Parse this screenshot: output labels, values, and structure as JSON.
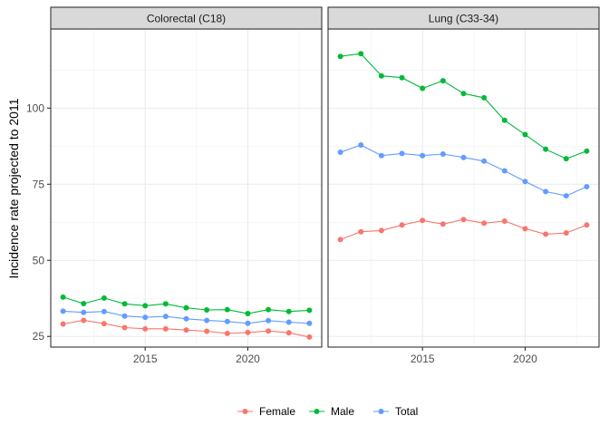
{
  "chart_data": {
    "type": "line",
    "ylabel": "Incidence rate projected to 2011",
    "xlabel": "",
    "x": [
      2011,
      2012,
      2013,
      2014,
      2015,
      2016,
      2017,
      2018,
      2019,
      2020,
      2021,
      2022,
      2023
    ],
    "xlim": [
      2010.4,
      2023.6
    ],
    "ylim": [
      21.5,
      126
    ],
    "xticks": [
      2015,
      2020
    ],
    "yticks": [
      25,
      50,
      75,
      100
    ],
    "grid": true,
    "legend_position": "bottom",
    "colors": {
      "Female": "#F8766D",
      "Male": "#00BA38",
      "Total": "#619CFF"
    },
    "panels": [
      {
        "title": "Colorectal (C18)",
        "series": [
          {
            "name": "Female",
            "values": [
              29.1,
              30.3,
              29.2,
              27.9,
              27.5,
              27.5,
              27.1,
              26.7,
              26.0,
              26.3,
              26.8,
              26.2,
              24.8
            ]
          },
          {
            "name": "Male",
            "values": [
              37.9,
              35.8,
              37.6,
              35.7,
              35.1,
              35.7,
              34.4,
              33.7,
              33.8,
              32.5,
              33.8,
              33.2,
              33.6
            ]
          },
          {
            "name": "Total",
            "values": [
              33.3,
              32.9,
              33.2,
              31.7,
              31.3,
              31.6,
              30.8,
              30.3,
              29.9,
              29.3,
              30.2,
              29.7,
              29.3
            ]
          }
        ]
      },
      {
        "title": "Lung (C33-34)",
        "series": [
          {
            "name": "Female",
            "values": [
              56.8,
              59.4,
              59.8,
              61.6,
              63.1,
              61.9,
              63.4,
              62.2,
              62.9,
              60.4,
              58.6,
              59.0,
              61.6
            ]
          },
          {
            "name": "Male",
            "values": [
              117.0,
              117.9,
              110.6,
              110.0,
              106.5,
              109.0,
              104.8,
              103.4,
              96.0,
              91.3,
              86.5,
              83.4,
              85.9
            ]
          },
          {
            "name": "Total",
            "values": [
              85.5,
              87.9,
              84.4,
              85.1,
              84.4,
              84.9,
              83.8,
              82.6,
              79.4,
              75.9,
              72.6,
              71.2,
              74.2
            ]
          }
        ]
      }
    ]
  }
}
